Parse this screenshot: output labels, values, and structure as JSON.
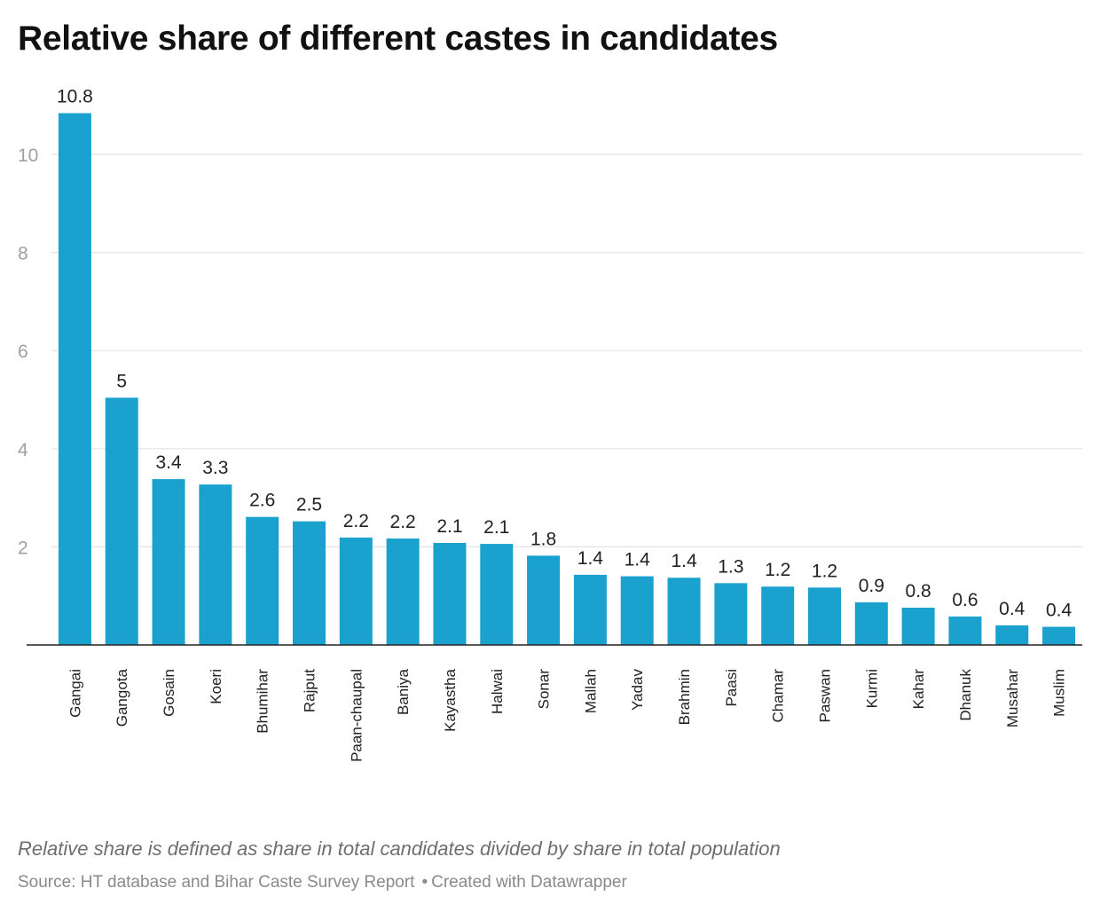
{
  "header": {
    "title": "Relative share of different castes in candidates"
  },
  "chart_data": {
    "type": "bar",
    "title": "Relative share of different castes in candidates",
    "xlabel": "",
    "ylabel": "",
    "categories": [
      "Gangai",
      "Gangota",
      "Gosain",
      "Koeri",
      "Bhumihar",
      "Rajput",
      "Paan-chaupal",
      "Baniya",
      "Kayastha",
      "Halwai",
      "Sonar",
      "Mallah",
      "Yadav",
      "Brahmin",
      "Paasi",
      "Chamar",
      "Paswan",
      "Kurmi",
      "Kahar",
      "Dhanuk",
      "Musahar",
      "Muslim"
    ],
    "values": [
      10.84,
      5.04,
      3.38,
      3.27,
      2.61,
      2.52,
      2.19,
      2.17,
      2.08,
      2.06,
      1.82,
      1.43,
      1.4,
      1.37,
      1.26,
      1.19,
      1.17,
      0.87,
      0.76,
      0.58,
      0.4,
      0.37
    ],
    "value_labels": [
      "10.8",
      "5",
      "3.4",
      "3.3",
      "2.6",
      "2.5",
      "2.2",
      "2.2",
      "2.1",
      "2.1",
      "1.8",
      "1.4",
      "1.4",
      "1.4",
      "1.3",
      "1.2",
      "1.2",
      "0.9",
      "0.8",
      "0.6",
      "0.4",
      "0.4"
    ],
    "y_ticks": [
      2,
      4,
      6,
      8,
      10
    ],
    "y_tick_labels": [
      "2",
      "4",
      "6",
      "8",
      "10"
    ],
    "ylim": [
      0,
      11
    ],
    "grid": true,
    "bar_color": "#1aa1ce"
  },
  "notes": "Relative share is defined as share in total candidates divided by share in total population",
  "footer": {
    "source": "Source: HT database and Bihar Caste Survey Report",
    "separator": "•",
    "credit": "Created with Datawrapper"
  }
}
